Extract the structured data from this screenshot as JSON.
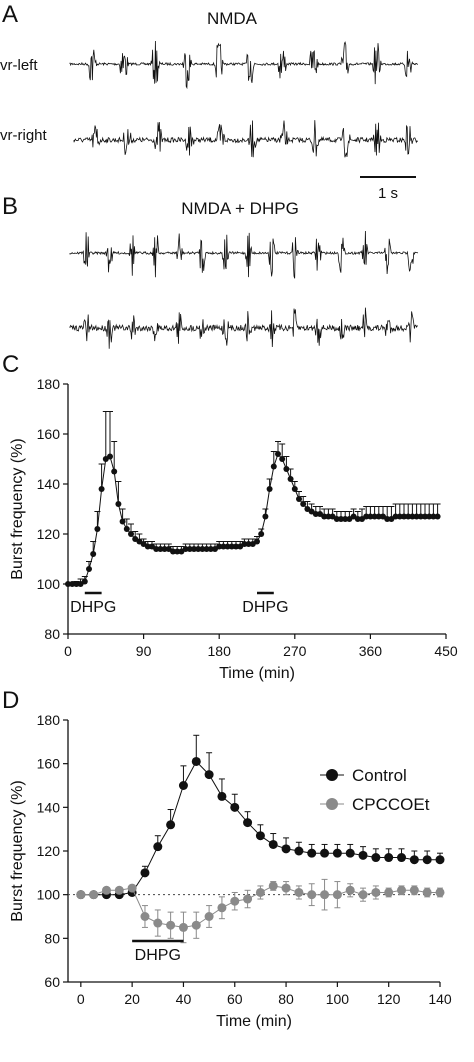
{
  "panel_a": {
    "letter": "A",
    "title": "NMDA",
    "traces": [
      {
        "label": "vr-left",
        "bursts": 11
      },
      {
        "label": "vr-right",
        "bursts": 11
      }
    ],
    "scalebar": "1 s"
  },
  "panel_b": {
    "letter": "B",
    "title": "NMDA + DHPG",
    "traces": [
      {
        "label": "",
        "bursts": 15
      },
      {
        "label": "",
        "bursts": 15
      }
    ]
  },
  "chart_data": [
    {
      "panel": "C",
      "type": "scatter",
      "xlabel": "Time (min)",
      "ylabel": "Burst frequency (%)",
      "xlim": [
        0,
        450
      ],
      "ylim": [
        80,
        180
      ],
      "xticks": [
        0,
        90,
        180,
        270,
        360,
        450
      ],
      "yticks": [
        80,
        100,
        120,
        140,
        160,
        180
      ],
      "annotations": [
        {
          "text": "DHPG",
          "x_range": [
            20,
            40
          ]
        },
        {
          "text": "DHPG",
          "x_range": [
            225,
            245
          ]
        }
      ],
      "series": [
        {
          "x": [
            0,
            5,
            10,
            15,
            20,
            25,
            30,
            35,
            40,
            45,
            50,
            55,
            60,
            65,
            70,
            75,
            80,
            85,
            90,
            95,
            100,
            105,
            110,
            115,
            120,
            125,
            130,
            135,
            140,
            145,
            150,
            155,
            160,
            165,
            170,
            175,
            180,
            185,
            190,
            195,
            200,
            205,
            210,
            215,
            220,
            225,
            230,
            235,
            240,
            245,
            250,
            255,
            260,
            265,
            270,
            275,
            280,
            285,
            290,
            295,
            300,
            305,
            310,
            315,
            320,
            325,
            330,
            335,
            340,
            345,
            350,
            355,
            360,
            365,
            370,
            375,
            380,
            385,
            390,
            395,
            400,
            405,
            410,
            415,
            420,
            425,
            430,
            435,
            440
          ],
          "y": [
            100,
            100,
            100,
            100,
            101,
            106,
            112,
            122,
            138,
            150,
            151,
            145,
            132,
            125,
            122,
            120,
            118,
            117,
            116,
            115,
            115,
            114,
            114,
            114,
            114,
            113,
            113,
            113,
            114,
            114,
            114,
            114,
            114,
            114,
            114,
            114,
            115,
            115,
            115,
            115,
            115,
            115,
            116,
            116,
            116,
            117,
            120,
            127,
            138,
            147,
            152,
            150,
            146,
            142,
            138,
            134,
            132,
            130,
            129,
            128,
            128,
            127,
            127,
            127,
            126,
            126,
            126,
            126,
            127,
            126,
            126,
            127,
            127,
            127,
            127,
            127,
            126,
            126,
            127,
            127,
            127,
            127,
            127,
            127,
            127,
            127,
            127,
            127,
            127
          ],
          "err": [
            0,
            0,
            1,
            2,
            2,
            3,
            5,
            7,
            10,
            19,
            18,
            12,
            9,
            5,
            4,
            4,
            3,
            3,
            2,
            2,
            2,
            2,
            2,
            2,
            2,
            2,
            2,
            2,
            2,
            2,
            2,
            2,
            2,
            2,
            2,
            2,
            2,
            2,
            2,
            2,
            2,
            2,
            2,
            2,
            2,
            2,
            2,
            3,
            4,
            6,
            5,
            6,
            5,
            4,
            3,
            3,
            3,
            3,
            3,
            3,
            3,
            3,
            3,
            3,
            3,
            3,
            3,
            3,
            3,
            3,
            4,
            4,
            4,
            4,
            4,
            4,
            5,
            5,
            5,
            5,
            5,
            5,
            5,
            5,
            5,
            5,
            5,
            5,
            5
          ]
        }
      ]
    },
    {
      "panel": "D",
      "type": "line",
      "xlabel": "Time (min)",
      "ylabel": "Burst frequency (%)",
      "xlim": [
        -5,
        140
      ],
      "ylim": [
        60,
        180
      ],
      "xticks": [
        0,
        20,
        40,
        60,
        80,
        100,
        120,
        140
      ],
      "yticks": [
        60,
        80,
        100,
        120,
        140,
        160,
        180
      ],
      "reference_line": 100,
      "legend": "right",
      "annotations": [
        {
          "text": "DHPG",
          "x_range": [
            20,
            40
          ]
        }
      ],
      "series": [
        {
          "name": "Control",
          "color": "#111111",
          "x": [
            0,
            5,
            10,
            15,
            20,
            25,
            30,
            35,
            40,
            45,
            50,
            55,
            60,
            65,
            70,
            75,
            80,
            85,
            90,
            95,
            100,
            105,
            110,
            115,
            120,
            125,
            130,
            135,
            140
          ],
          "y": [
            100,
            100,
            100,
            100,
            101,
            110,
            122,
            132,
            150,
            161,
            155,
            145,
            140,
            133,
            127,
            123,
            121,
            120,
            119,
            119,
            119,
            119,
            118,
            117,
            117,
            117,
            116,
            116,
            116
          ],
          "err": [
            0,
            0,
            0,
            0,
            1,
            3,
            5,
            7,
            9,
            12,
            10,
            8,
            6,
            5,
            5,
            5,
            5,
            4,
            4,
            4,
            4,
            4,
            4,
            4,
            4,
            4,
            4,
            4,
            3
          ]
        },
        {
          "name": "CPCCOEt",
          "color": "#8a8a8a",
          "x": [
            0,
            5,
            10,
            15,
            20,
            25,
            30,
            35,
            40,
            45,
            50,
            55,
            60,
            65,
            70,
            75,
            80,
            85,
            90,
            95,
            100,
            105,
            110,
            115,
            120,
            125,
            130,
            135,
            140
          ],
          "y": [
            100,
            100,
            102,
            102,
            103,
            90,
            87,
            86,
            85,
            86,
            90,
            94,
            97,
            98,
            101,
            104,
            103,
            101,
            100,
            100,
            100,
            102,
            100,
            101,
            101,
            102,
            102,
            101,
            101
          ],
          "err": [
            0,
            0,
            1,
            1,
            1,
            5,
            6,
            6,
            7,
            6,
            5,
            5,
            4,
            4,
            3,
            2,
            3,
            3,
            5,
            7,
            6,
            3,
            3,
            3,
            2,
            2,
            2,
            2,
            2
          ]
        }
      ]
    }
  ],
  "panel_c": {
    "letter": "C"
  },
  "panel_d": {
    "letter": "D"
  }
}
